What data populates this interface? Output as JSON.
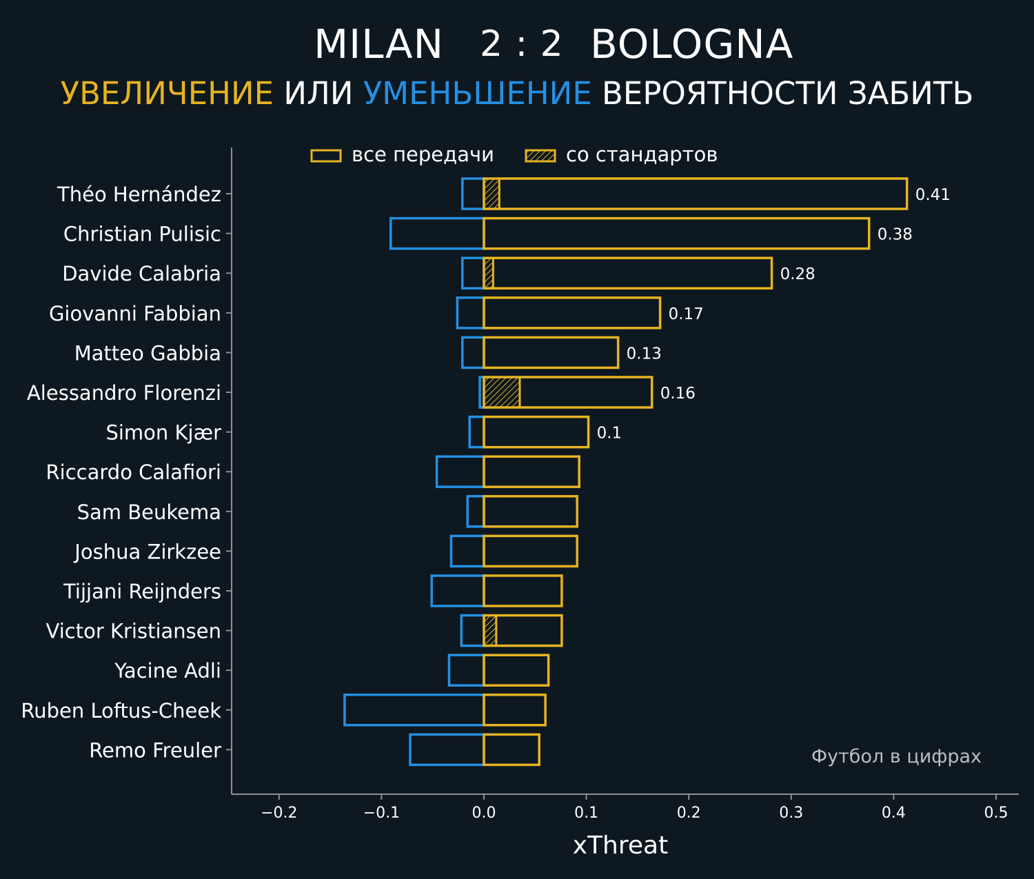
{
  "header": {
    "home_team": "MILAN",
    "score": "2 : 2",
    "away_team": "BOLOGNA",
    "subtitle_increase": "УВЕЛИЧЕНИЕ",
    "subtitle_or": " ИЛИ ",
    "subtitle_decrease": "УМЕНЬШЕНИЕ",
    "subtitle_rest": " ВЕРОЯТНОСТИ ЗАБИТЬ"
  },
  "watermark": "Футбол в цифрах",
  "colors": {
    "background": "#0e1820",
    "increase": "#e6b422",
    "decrease": "#2490e3",
    "text": "#ffffff",
    "axis": "#8a9299"
  },
  "chart_data": {
    "type": "bar",
    "orientation": "horizontal",
    "xlabel": "xThreat",
    "xlim": [
      -0.25,
      0.52
    ],
    "xticks": [
      -0.2,
      -0.1,
      0.0,
      0.1,
      0.2,
      0.3,
      0.4,
      0.5
    ],
    "xtick_labels": [
      "−0.2",
      "−0.1",
      "0.0",
      "0.1",
      "0.2",
      "0.3",
      "0.4",
      "0.5"
    ],
    "legend": {
      "placement": "top",
      "entries": [
        {
          "label": "все передачи",
          "style": "outline"
        },
        {
          "label": "со стандартов",
          "style": "hatched"
        }
      ]
    },
    "categories": [
      "Théo Hernández",
      "Christian Pulisic",
      "Davide Calabria",
      "Giovanni Fabbian",
      "Matteo Gabbia",
      "Alessandro Florenzi",
      "Simon Kjær",
      "Riccardo Calafiori",
      "Sam Beukema",
      "Joshua Zirkzee",
      "Tijjani Reijnders",
      "Victor Kristiansen",
      "Yacine Adli",
      "Ruben Loftus-Cheek",
      "Remo Freuler"
    ],
    "series": [
      {
        "name": "increase",
        "values": [
          0.413,
          0.376,
          0.281,
          0.172,
          0.131,
          0.164,
          0.102,
          0.093,
          0.091,
          0.091,
          0.076,
          0.076,
          0.063,
          0.06,
          0.054
        ]
      },
      {
        "name": "decrease",
        "values": [
          -0.021,
          -0.091,
          -0.021,
          -0.026,
          -0.021,
          -0.004,
          -0.014,
          -0.046,
          -0.016,
          -0.032,
          -0.051,
          -0.022,
          -0.034,
          -0.136,
          -0.072
        ]
      },
      {
        "name": "set_pieces",
        "values": [
          0.015,
          0,
          0.009,
          0,
          0,
          0.035,
          0,
          0,
          0,
          0,
          0,
          0.012,
          0,
          0,
          0
        ]
      }
    ],
    "value_labels": [
      "0.41",
      "0.38",
      "0.28",
      "0.17",
      "0.13",
      "0.16",
      "0.1",
      "",
      "",
      "",
      "",
      "",
      "",
      "",
      ""
    ]
  }
}
